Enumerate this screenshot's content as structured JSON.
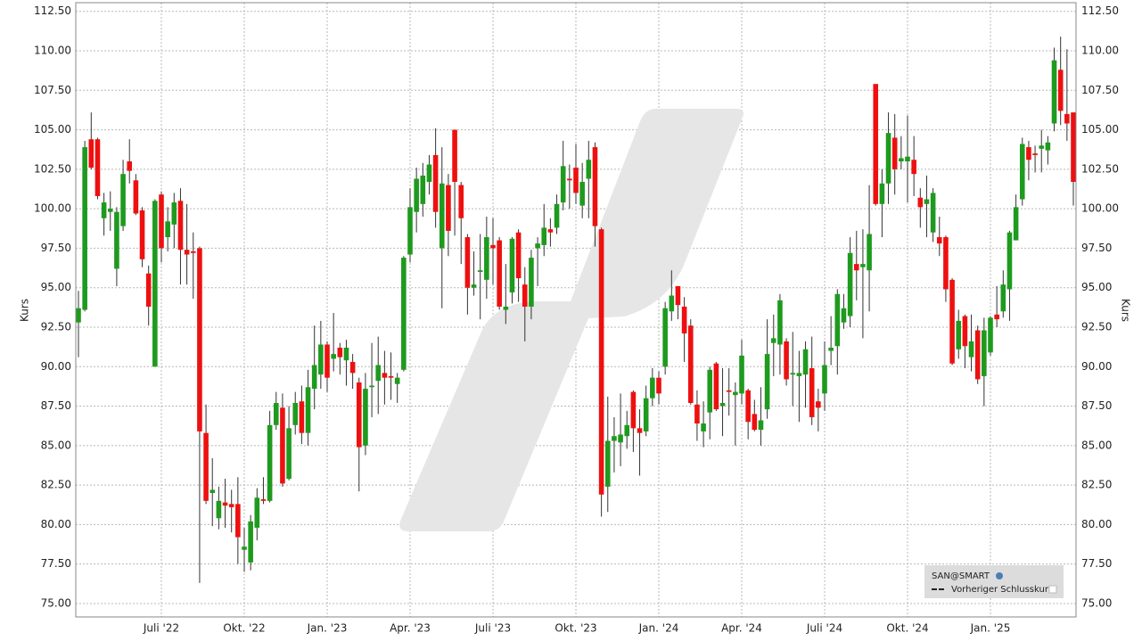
{
  "chart_data": {
    "type": "candlestick",
    "ylabel": "Kurs",
    "categories": [
      null,
      null,
      null,
      null,
      null,
      null,
      null,
      null,
      null,
      null,
      null,
      null,
      null,
      "Juli '22",
      null,
      null,
      null,
      null,
      null,
      null,
      null,
      null,
      null,
      null,
      null,
      null,
      "Okt. '22",
      null,
      null,
      null,
      null,
      null,
      null,
      null,
      null,
      null,
      null,
      null,
      null,
      "Jan. '23",
      null,
      null,
      null,
      null,
      null,
      null,
      null,
      null,
      null,
      null,
      null,
      null,
      "Apr. '23",
      null,
      null,
      null,
      null,
      null,
      null,
      null,
      null,
      null,
      null,
      null,
      null,
      "Juli '23",
      null,
      null,
      null,
      null,
      null,
      null,
      null,
      null,
      null,
      null,
      null,
      null,
      "Okt. '23",
      null,
      null,
      null,
      null,
      null,
      null,
      null,
      null,
      null,
      null,
      null,
      null,
      "Jan. '24",
      null,
      null,
      null,
      null,
      null,
      null,
      null,
      null,
      null,
      null,
      null,
      null,
      "Apr. '24",
      null,
      null,
      null,
      null,
      null,
      null,
      null,
      null,
      null,
      null,
      null,
      null,
      "Juli '24",
      null,
      null,
      null,
      null,
      null,
      null,
      null,
      null,
      null,
      null,
      null,
      null,
      "Okt. '24",
      null,
      null,
      null,
      null,
      null,
      null,
      null,
      null,
      null,
      null,
      null,
      null,
      "Jan. '25",
      null,
      null,
      null,
      null,
      null,
      null,
      null,
      null,
      null,
      null,
      null,
      null,
      null
    ],
    "open": [
      92.8,
      93.6,
      104.4,
      104.4,
      99.4,
      99.8,
      96.2,
      98.9,
      103.0,
      101.8,
      99.9,
      95.9,
      90.0,
      100.9,
      98.2,
      99.0,
      100.5,
      97.4,
      97.3,
      97.5,
      85.8,
      82.0,
      80.4,
      81.4,
      81.3,
      81.3,
      78.4,
      77.6,
      79.8,
      81.6,
      81.5,
      86.3,
      87.4,
      82.9,
      86.3,
      87.8,
      85.8,
      88.6,
      89.5,
      91.4,
      90.5,
      91.2,
      90.4,
      90.3,
      89.0,
      85.0,
      88.7,
      89.1,
      89.6,
      89.4,
      88.9,
      89.8,
      97.1,
      99.8,
      100.3,
      101.7,
      103.4,
      97.5,
      101.5,
      105.0,
      101.5,
      98.2,
      95.0,
      96.0,
      95.5,
      97.7,
      98.0,
      93.6,
      94.7,
      98.5,
      95.2,
      93.8,
      97.5,
      97.7,
      98.7,
      98.8,
      100.4,
      101.9,
      102.6,
      100.2,
      101.9,
      103.9,
      98.7,
      82.4,
      85.3,
      85.2,
      85.6,
      88.4,
      86.1,
      85.9,
      88.0,
      89.3,
      90.0,
      93.5,
      95.1,
      93.8,
      92.6,
      87.6,
      85.9,
      87.1,
      90.2,
      87.5,
      88.5,
      88.2,
      88.3,
      88.5,
      87.0,
      86.0,
      87.3,
      91.5,
      91.4,
      91.6,
      89.5,
      89.4,
      89.5,
      89.9,
      87.8,
      88.3,
      91.0,
      91.3,
      92.8,
      93.2,
      96.5,
      96.3,
      96.1,
      107.9,
      100.3,
      101.6,
      104.5,
      103.0,
      103.0,
      103.1,
      100.7,
      100.3,
      98.5,
      98.2,
      98.2,
      95.5,
      91.1,
      93.2,
      90.6,
      92.3,
      89.4,
      90.9,
      93.3,
      93.5,
      94.9,
      98.0,
      100.6,
      103.9,
      103.5,
      103.8,
      103.7,
      105.4,
      108.8,
      106.0,
      106.1
    ],
    "high": [
      94.8,
      104.3,
      106.1,
      104.5,
      101.0,
      101.1,
      100.1,
      103.1,
      104.4,
      102.2,
      100.1,
      96.4,
      100.6,
      101.1,
      100.1,
      101.0,
      101.3,
      100.3,
      98.5,
      97.6,
      87.6,
      84.2,
      82.4,
      82.9,
      82.2,
      83.0,
      79.8,
      80.6,
      82.3,
      83.0,
      87.2,
      88.4,
      88.3,
      87.5,
      88.4,
      88.8,
      89.8,
      92.6,
      92.9,
      91.6,
      93.4,
      91.5,
      91.7,
      90.8,
      89.3,
      89.6,
      91.5,
      91.9,
      91.0,
      90.9,
      89.6,
      97.0,
      101.3,
      102.6,
      102.9,
      103.4,
      105.1,
      103.9,
      102.2,
      105.0,
      101.7,
      98.4,
      97.3,
      98.4,
      99.5,
      99.4,
      98.2,
      96.5,
      98.2,
      98.7,
      96.3,
      97.4,
      98.2,
      100.3,
      99.4,
      100.9,
      104.3,
      102.8,
      104.1,
      102.9,
      104.3,
      104.2,
      98.8,
      88.1,
      86.8,
      88.3,
      87.2,
      88.5,
      87.3,
      88.8,
      89.9,
      89.7,
      94.1,
      96.1,
      95.1,
      94.4,
      93.0,
      88.5,
      87.8,
      90.0,
      90.3,
      89.9,
      89.9,
      89.0,
      91.7,
      88.6,
      87.9,
      88.7,
      93.0,
      93.3,
      94.6,
      91.8,
      92.2,
      91.0,
      91.6,
      91.9,
      88.6,
      91.6,
      93.2,
      94.9,
      94.6,
      98.2,
      98.6,
      98.7,
      101.5,
      107.9,
      102.5,
      106.1,
      106.0,
      104.6,
      105.9,
      104.6,
      101.3,
      102.1,
      101.3,
      99.5,
      98.3,
      95.6,
      93.6,
      93.3,
      93.3,
      92.6,
      93.1,
      93.2,
      95.1,
      96.1,
      98.6,
      100.9,
      104.5,
      104.3,
      104.0,
      105.0,
      104.6,
      110.2,
      110.9,
      110.1,
      106.1
    ],
    "low": [
      90.6,
      93.5,
      102.5,
      100.6,
      98.3,
      98.6,
      95.1,
      98.6,
      101.6,
      99.6,
      96.3,
      92.6,
      90.0,
      96.6,
      97.3,
      97.5,
      95.2,
      95.2,
      94.3,
      76.3,
      81.3,
      79.9,
      79.7,
      79.8,
      79.5,
      77.5,
      77.0,
      77.1,
      79.0,
      81.3,
      81.4,
      86.0,
      82.4,
      82.8,
      85.7,
      85.1,
      85.0,
      87.3,
      88.6,
      88.4,
      89.7,
      89.5,
      88.8,
      88.6,
      82.1,
      84.4,
      86.8,
      87.0,
      87.6,
      87.9,
      87.7,
      89.7,
      96.6,
      98.5,
      99.5,
      100.9,
      98.8,
      93.7,
      97.0,
      98.3,
      96.5,
      93.3,
      94.5,
      93.0,
      94.3,
      95.2,
      93.6,
      92.7,
      94.0,
      94.1,
      91.6,
      93.0,
      95.1,
      97.0,
      97.6,
      98.4,
      99.9,
      100.0,
      100.3,
      99.4,
      99.4,
      97.6,
      80.5,
      80.8,
      83.3,
      83.7,
      84.8,
      84.6,
      83.1,
      85.6,
      87.5,
      87.6,
      89.5,
      92.9,
      93.0,
      90.3,
      87.6,
      85.3,
      84.9,
      85.4,
      87.2,
      85.6,
      86.9,
      85.0,
      87.6,
      85.4,
      85.9,
      85.0,
      86.7,
      89.4,
      89.5,
      88.8,
      87.5,
      86.5,
      87.4,
      86.3,
      85.9,
      87.2,
      90.1,
      89.5,
      92.4,
      92.5,
      94.2,
      91.8,
      93.5,
      100.2,
      98.2,
      100.3,
      100.9,
      102.5,
      100.4,
      100.8,
      98.8,
      98.2,
      97.9,
      97.0,
      94.1,
      90.1,
      90.5,
      89.9,
      89.7,
      88.9,
      87.5,
      90.7,
      92.5,
      93.1,
      92.9,
      98.0,
      100.2,
      101.8,
      102.3,
      102.3,
      102.8,
      104.9,
      105.3,
      104.3,
      100.2
    ],
    "close": [
      93.7,
      103.9,
      102.6,
      100.8,
      100.4,
      100.0,
      99.8,
      102.2,
      102.4,
      99.7,
      96.8,
      93.8,
      100.5,
      97.5,
      99.2,
      100.4,
      97.4,
      97.1,
      97.2,
      85.9,
      81.5,
      82.2,
      81.5,
      81.2,
      81.1,
      79.2,
      78.6,
      80.2,
      81.7,
      81.5,
      86.3,
      87.7,
      82.6,
      86.1,
      87.7,
      85.8,
      88.7,
      90.1,
      91.4,
      89.3,
      90.8,
      90.6,
      91.2,
      89.6,
      84.9,
      88.6,
      88.8,
      90.1,
      89.3,
      89.3,
      89.3,
      96.9,
      100.1,
      101.9,
      102.1,
      102.8,
      99.8,
      101.6,
      98.6,
      101.7,
      99.4,
      95.0,
      95.2,
      96.1,
      98.2,
      97.5,
      93.8,
      93.8,
      98.1,
      95.6,
      93.8,
      96.9,
      97.8,
      98.8,
      98.5,
      100.3,
      102.7,
      101.8,
      101.0,
      101.7,
      103.1,
      98.9,
      81.9,
      85.3,
      85.6,
      85.7,
      86.3,
      86.1,
      85.8,
      88.0,
      89.3,
      88.3,
      93.7,
      94.5,
      93.9,
      92.1,
      87.7,
      86.4,
      86.4,
      89.8,
      87.3,
      87.7,
      88.4,
      88.4,
      90.7,
      86.5,
      86.0,
      86.6,
      90.8,
      91.8,
      94.2,
      89.2,
      89.6,
      89.6,
      91.1,
      86.8,
      87.4,
      90.1,
      91.2,
      94.6,
      93.7,
      97.2,
      96.1,
      96.5,
      98.4,
      100.3,
      101.6,
      104.8,
      102.5,
      103.2,
      103.3,
      102.2,
      100.1,
      100.6,
      101.0,
      97.8,
      94.9,
      90.2,
      92.9,
      91.3,
      91.6,
      89.2,
      92.3,
      93.1,
      93.0,
      95.2,
      98.5,
      100.1,
      104.1,
      103.1,
      103.4,
      104.0,
      104.2,
      109.4,
      106.2,
      105.4,
      101.7
    ],
    "up_color": "#1e9a1e",
    "down_color": "#ee1010",
    "ylim": [
      74.15,
      113.05
    ],
    "yticks": [
      {
        "value": 75,
        "label": "75.00"
      },
      {
        "value": 77.5,
        "label": "77.50"
      },
      {
        "value": 80,
        "label": "80.00"
      },
      {
        "value": 82.5,
        "label": "82.50"
      },
      {
        "value": 85,
        "label": "85.00"
      },
      {
        "value": 87.5,
        "label": "87.50"
      },
      {
        "value": 90,
        "label": "90.00"
      },
      {
        "value": 92.5,
        "label": "92.50"
      },
      {
        "value": 95,
        "label": "95.00"
      },
      {
        "value": 97.5,
        "label": "97.50"
      },
      {
        "value": 100,
        "label": "100.00"
      },
      {
        "value": 102.5,
        "label": "102.50"
      },
      {
        "value": 105,
        "label": "105.00"
      },
      {
        "value": 107.5,
        "label": "107.50"
      },
      {
        "value": 110,
        "label": "110.00"
      },
      {
        "value": 112.5,
        "label": "112.50"
      }
    ],
    "grid": true,
    "legend": {
      "title": "SAN@SMART",
      "items": [
        "Vorheriger Schlusskurs"
      ]
    }
  }
}
